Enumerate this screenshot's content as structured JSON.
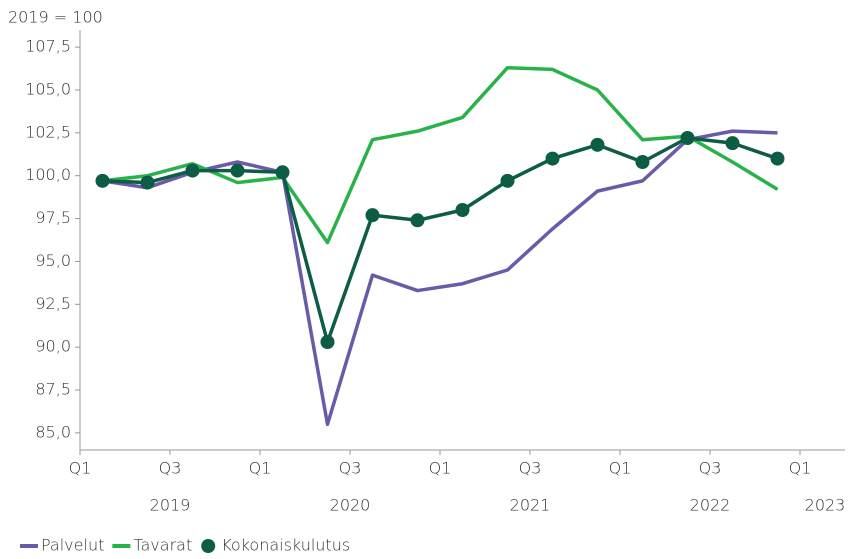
{
  "chart_data": {
    "type": "line",
    "unit_label": "2019 = 100",
    "categories": [
      null,
      null,
      null,
      null,
      null,
      null,
      null,
      null,
      null,
      null,
      null,
      null,
      null,
      null,
      null,
      null
    ],
    "xticks": [
      {
        "value": 0,
        "label": "Q1"
      },
      {
        "value": 2,
        "label": "Q3"
      },
      {
        "value": 4,
        "label": "Q1"
      },
      {
        "value": 6,
        "label": "Q3"
      },
      {
        "value": 8,
        "label": "Q1"
      },
      {
        "value": 10,
        "label": "Q3"
      },
      {
        "value": 12,
        "label": "Q1"
      },
      {
        "value": 14,
        "label": "Q3"
      },
      {
        "value": 16,
        "label": "Q1"
      }
    ],
    "x_group_labels": [
      "2019",
      "2020",
      "2021",
      "2022",
      "2023"
    ],
    "ylim": [
      84,
      108.5
    ],
    "yticks": [
      {
        "value": 85,
        "label": "85,0"
      },
      {
        "value": 87.5,
        "label": "87,5"
      },
      {
        "value": 90,
        "label": "90,0"
      },
      {
        "value": 92.5,
        "label": "92,5"
      },
      {
        "value": 95,
        "label": "95,0"
      },
      {
        "value": 97.5,
        "label": "97,5"
      },
      {
        "value": 100,
        "label": "100,0"
      },
      {
        "value": 102.5,
        "label": "102,5"
      },
      {
        "value": 105,
        "label": "105,0"
      },
      {
        "value": 107.5,
        "label": "107,5"
      }
    ],
    "grid": false,
    "series": [
      {
        "name": "Palvelut",
        "color": "#6a5aa8",
        "markers": false,
        "values": [
          99.7,
          99.3,
          100.2,
          100.8,
          100.2,
          85.5,
          94.2,
          93.3,
          93.7,
          94.5,
          96.9,
          99.1,
          99.7,
          102.1,
          102.6,
          102.5
        ]
      },
      {
        "name": "Tavarat",
        "color": "#2ab24a",
        "markers": false,
        "values": [
          99.7,
          100.0,
          100.7,
          99.6,
          99.9,
          96.1,
          102.1,
          102.6,
          103.4,
          106.3,
          106.2,
          105.0,
          102.1,
          102.3,
          100.8,
          99.2
        ]
      },
      {
        "name": "Kokonaiskulutus",
        "color": "#0d5c45",
        "markers": true,
        "values": [
          99.7,
          99.6,
          100.3,
          100.3,
          100.2,
          90.3,
          97.7,
          97.4,
          98.0,
          99.7,
          101.0,
          101.8,
          100.8,
          102.2,
          101.9,
          101.0
        ]
      }
    ]
  }
}
